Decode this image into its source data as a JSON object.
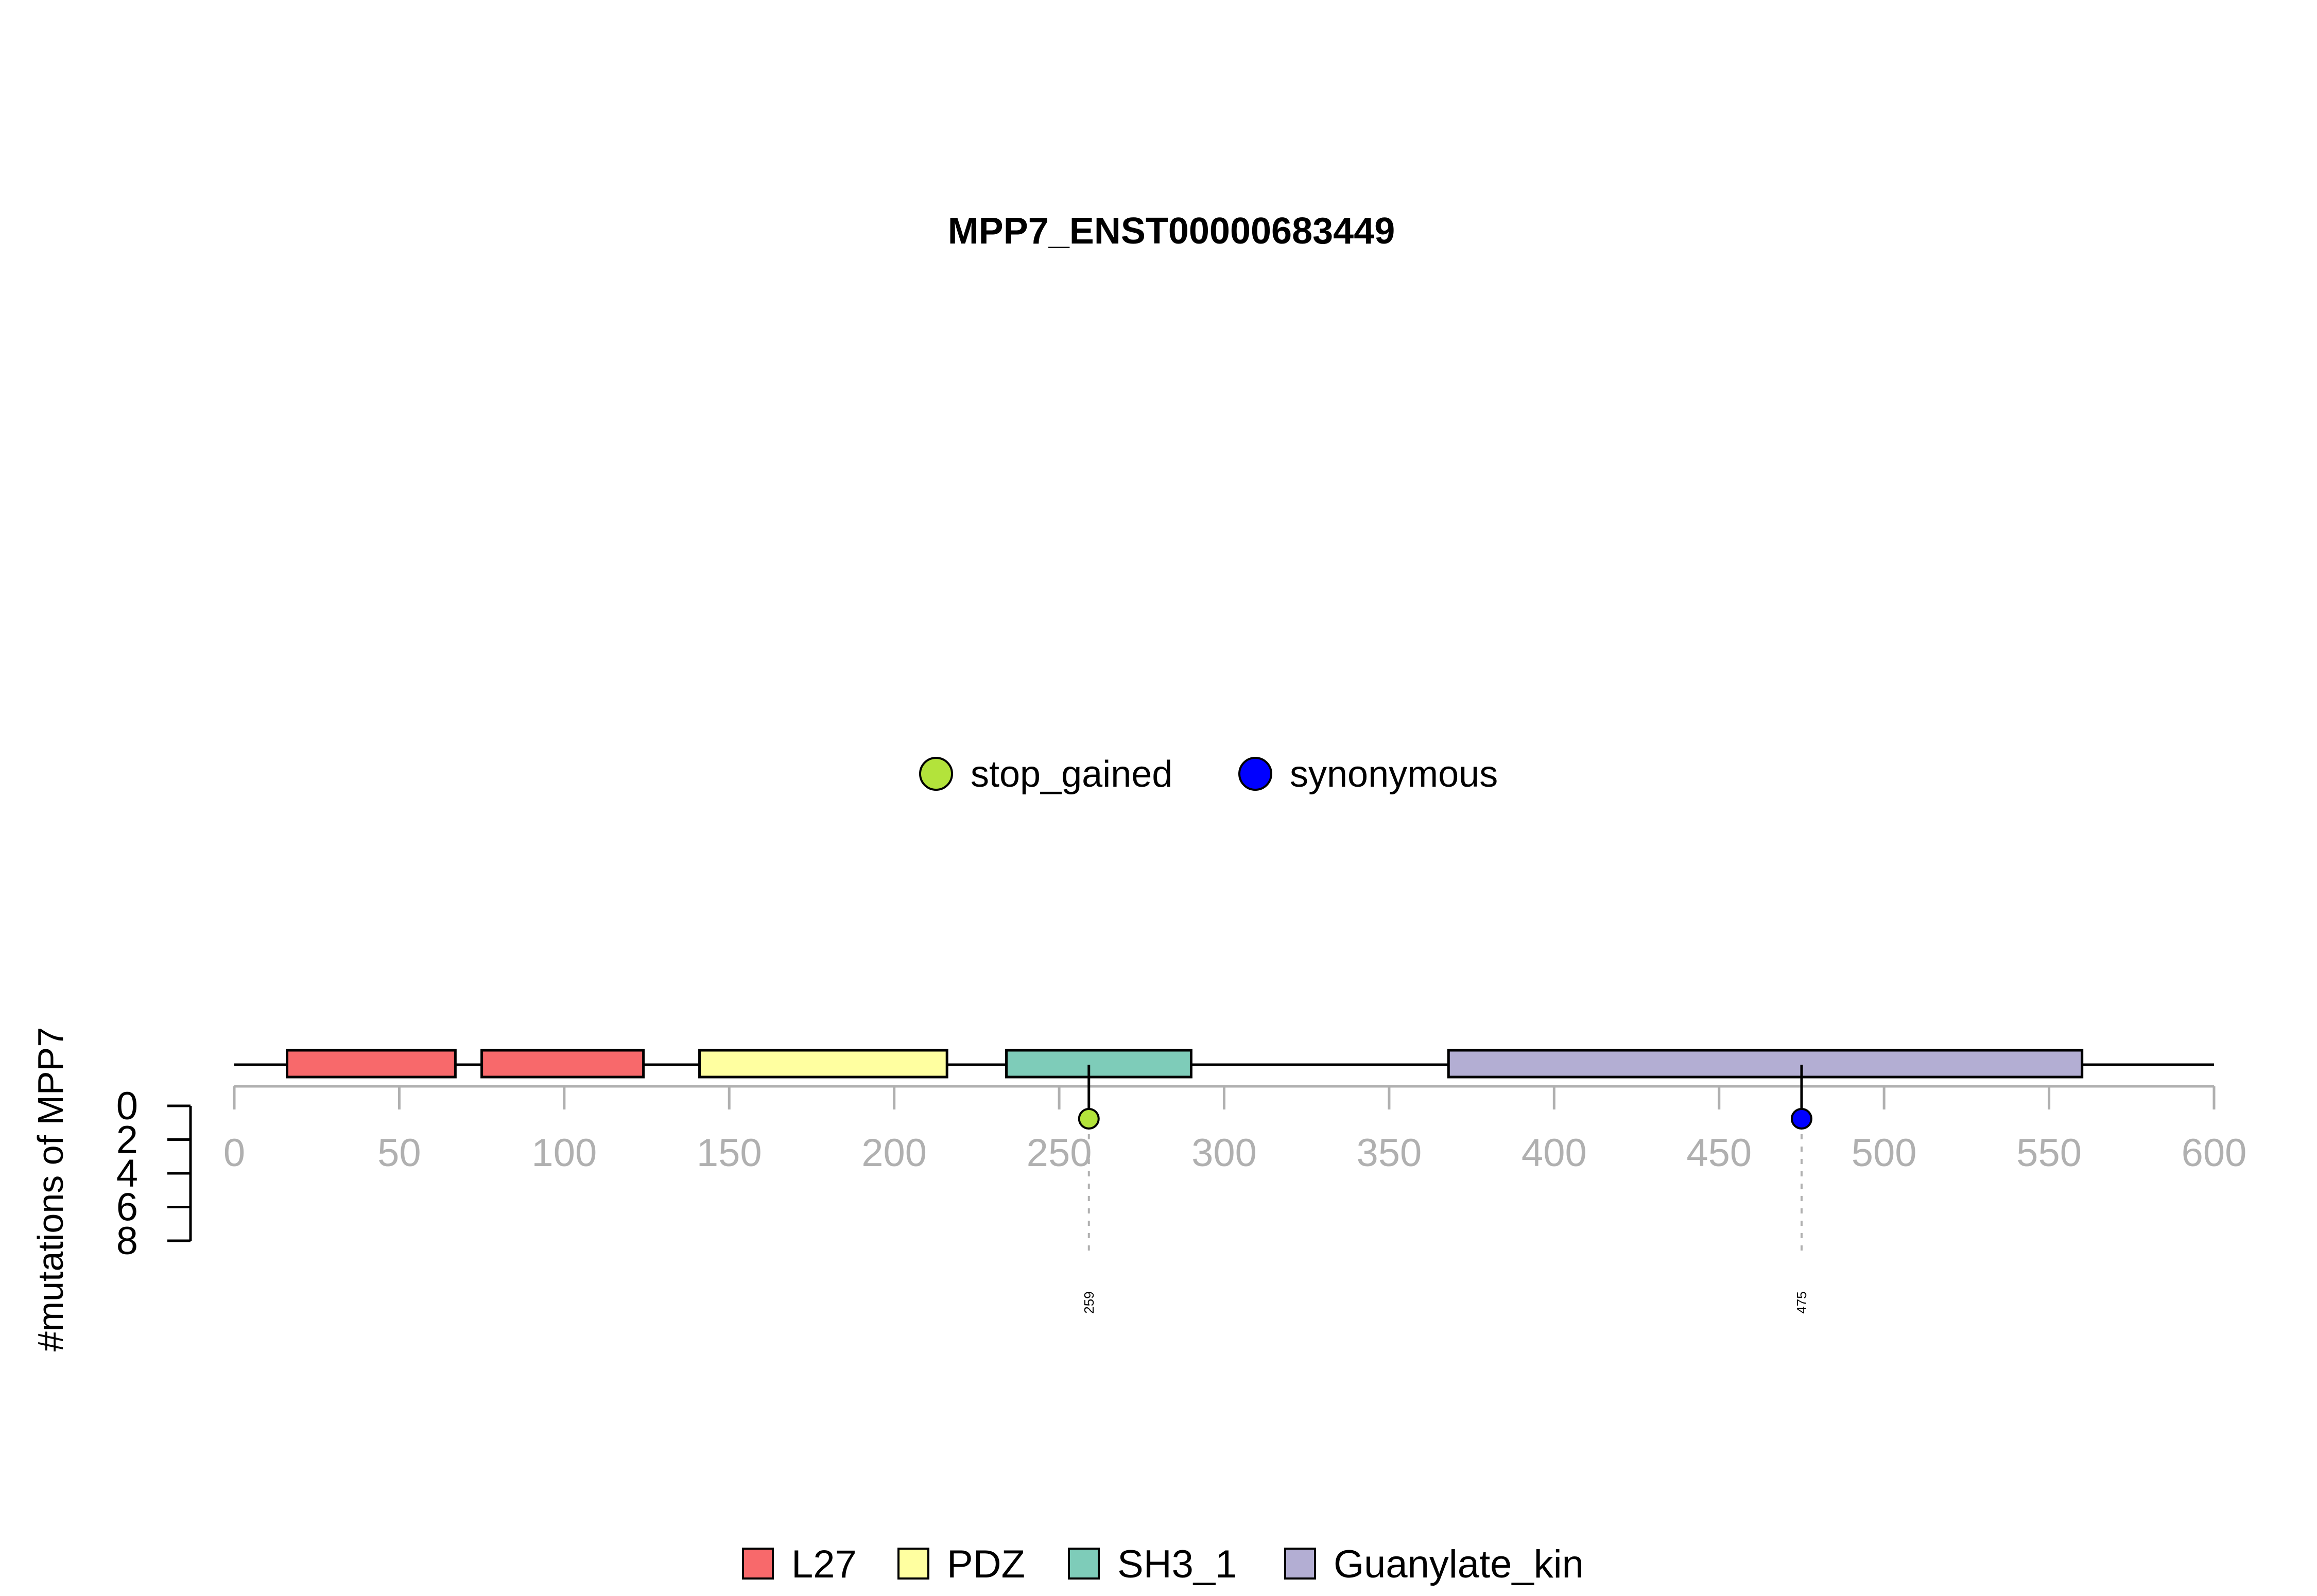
{
  "chart_data": {
    "type": "lollipop",
    "title": "MPP7_ENST00000683449",
    "ylabel": "#mutations of MPP7",
    "xlim": [
      0,
      600
    ],
    "x_ticks": [
      0,
      50,
      100,
      150,
      200,
      250,
      300,
      350,
      400,
      450,
      500,
      550,
      600
    ],
    "ylim": [
      0,
      8
    ],
    "y_ticks": [
      0,
      2,
      4,
      6,
      8
    ],
    "legend_top": {
      "placement": "top-center",
      "items": [
        {
          "label": "stop_gained",
          "color": "#B3E33B"
        },
        {
          "label": "synonymous",
          "color": "#0000FF"
        }
      ]
    },
    "legend_bottom": {
      "placement": "bottom-center",
      "items": [
        {
          "label": "L27",
          "color": "#F8696B"
        },
        {
          "label": "PDZ",
          "color": "#FFFFA0"
        },
        {
          "label": "SH3_1",
          "color": "#7ECCB9"
        },
        {
          "label": "Guanylate_kin",
          "color": "#B3AED3"
        }
      ]
    },
    "domains": [
      {
        "name": "L27",
        "start": 16,
        "end": 67,
        "color": "#F8696B"
      },
      {
        "name": "L27",
        "start": 75,
        "end": 124,
        "color": "#F8696B"
      },
      {
        "name": "PDZ",
        "start": 141,
        "end": 216,
        "color": "#FFFFA0"
      },
      {
        "name": "SH3_1",
        "start": 234,
        "end": 290,
        "color": "#7ECCB9"
      },
      {
        "name": "Guanylate_kin",
        "start": 368,
        "end": 560,
        "color": "#B3AED3"
      }
    ],
    "mutations": [
      {
        "position": 259,
        "count": 1,
        "type": "stop_gained",
        "color": "#B3E33B",
        "label": "259"
      },
      {
        "position": 475,
        "count": 1,
        "type": "synonymous",
        "color": "#0000FF",
        "label": "475"
      }
    ]
  }
}
